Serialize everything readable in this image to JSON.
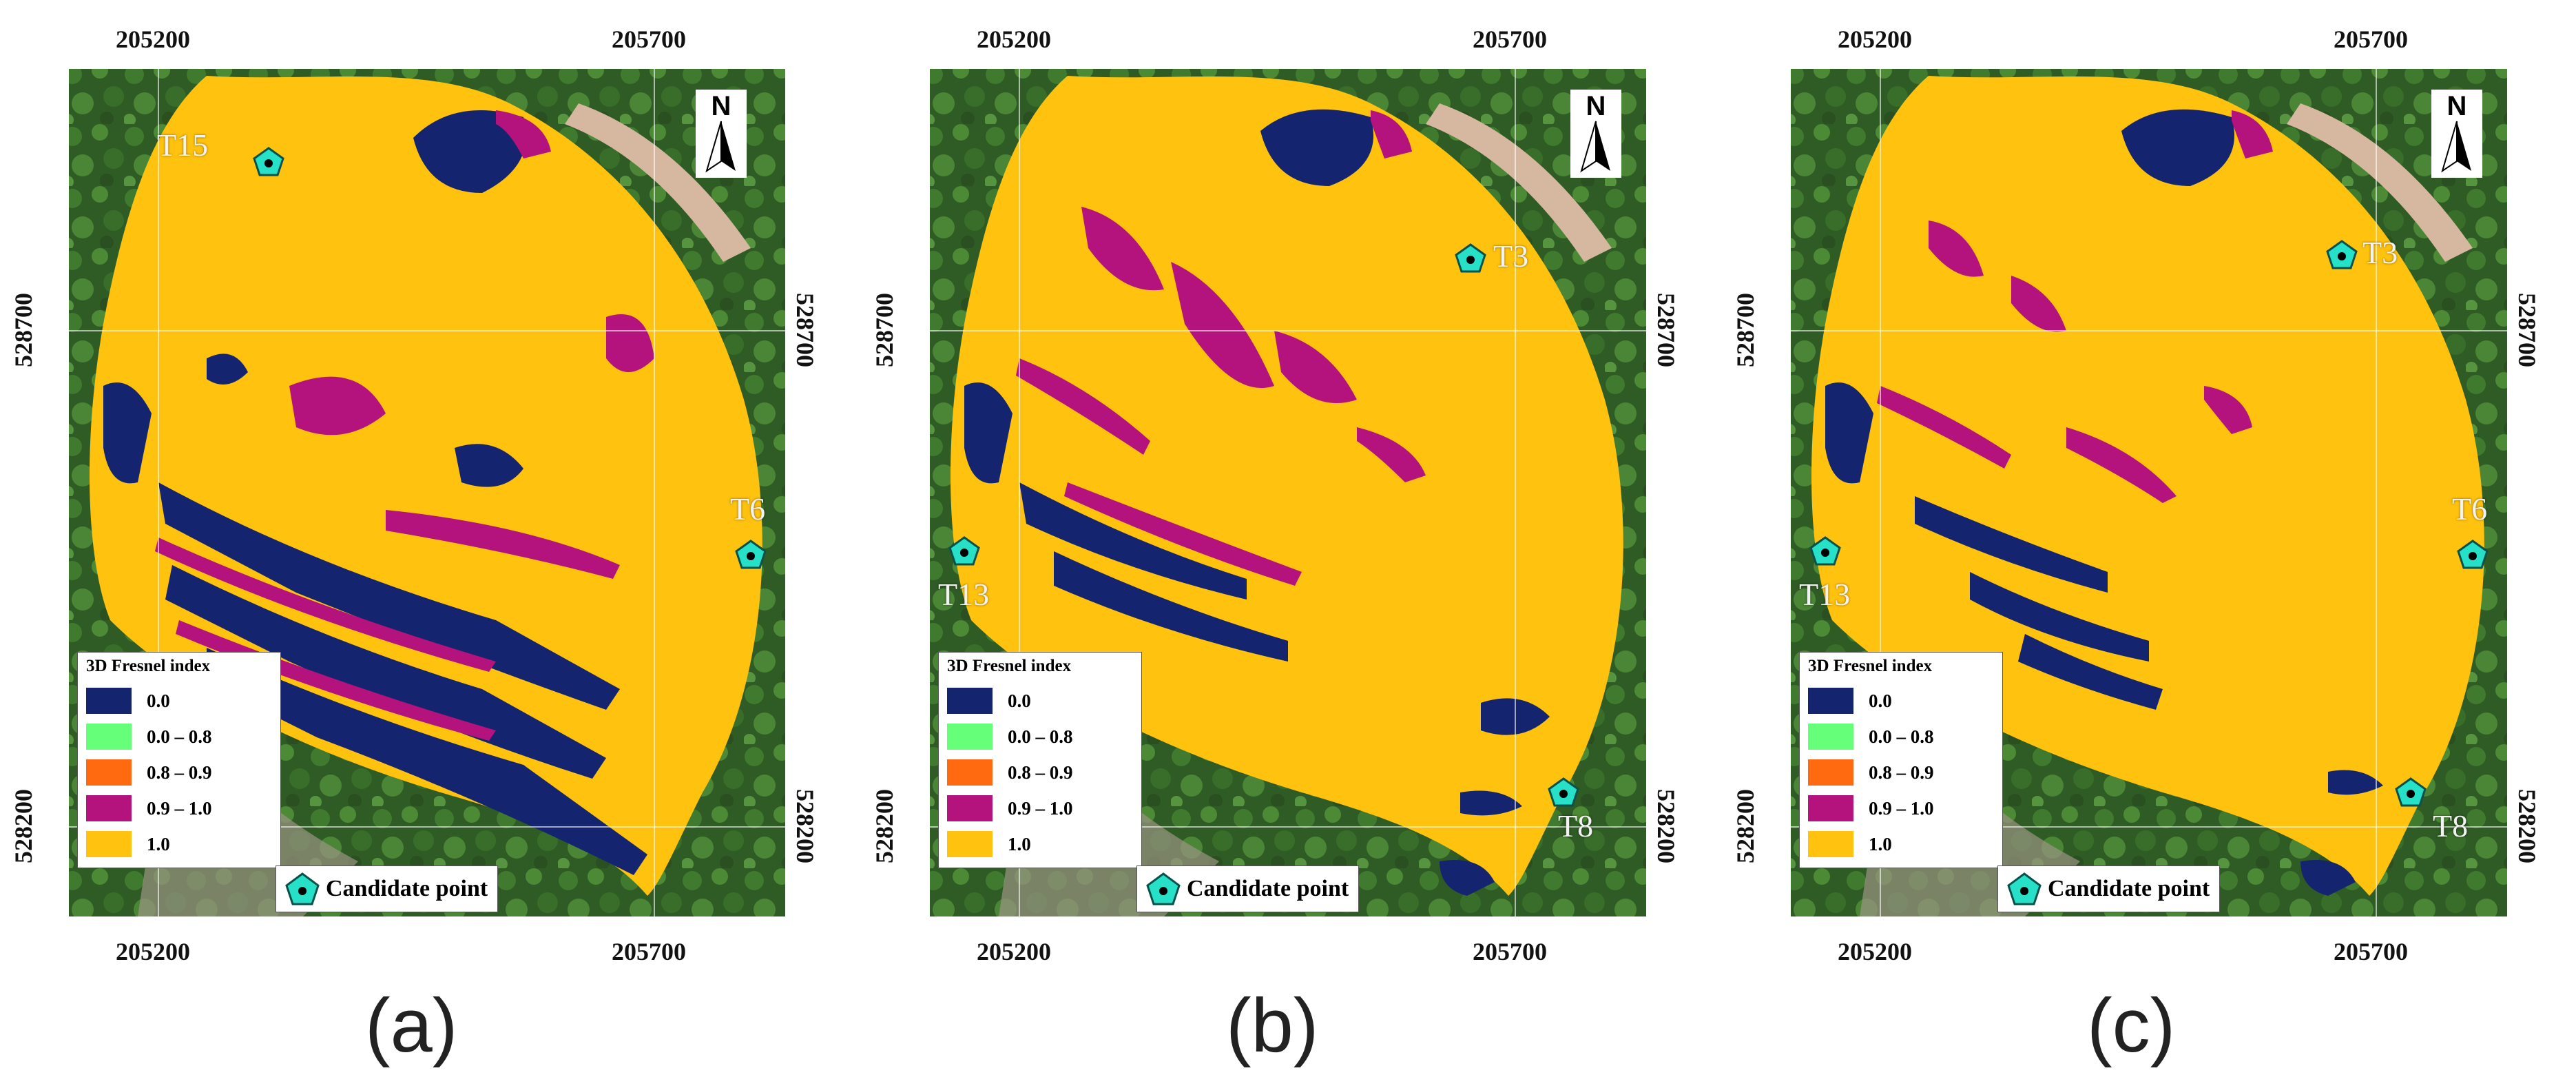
{
  "colors": {
    "class_0": "#14246e",
    "class_0_08": "#66ff7a",
    "class_08_09": "#ff6a10",
    "class_09_10": "#b4127c",
    "class_10": "#ffc20e",
    "candidate": "#27e0c8"
  },
  "axes": {
    "x_left": "205200",
    "x_right": "205700",
    "y_upper": "528700",
    "y_lower": "528200"
  },
  "legend": {
    "title": "3D Fresnel index",
    "items": [
      "0.0",
      "0.0 – 0.8",
      "0.8 – 0.9",
      "0.9 – 1.0",
      "1.0"
    ],
    "candidate_label": "Candidate point"
  },
  "north_label": "N",
  "panels": [
    {
      "caption": "(a)",
      "points": [
        "T15",
        "T6"
      ]
    },
    {
      "caption": "(b)",
      "points": [
        "T3",
        "T13",
        "T8"
      ]
    },
    {
      "caption": "(c)",
      "points": [
        "T3",
        "T6",
        "T13",
        "T8"
      ]
    }
  ]
}
